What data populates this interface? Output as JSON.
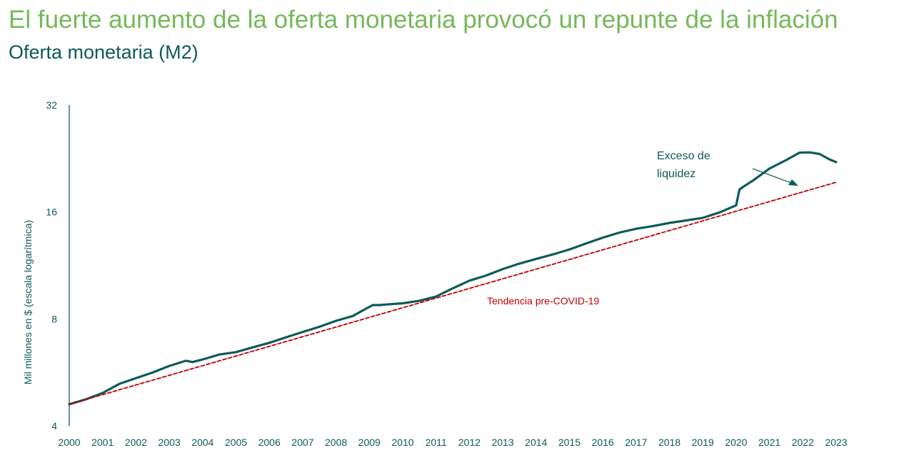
{
  "header": {
    "title": "El fuerte aumento de la oferta monetaria provocó un repunte de la inflación",
    "subtitle": "Oferta monetaria (M2)"
  },
  "colors": {
    "title": "#76b85a",
    "text": "#0e5a5a",
    "m2_line": "#0e5a5a",
    "trend_line": "#c00000"
  },
  "chart_data": {
    "type": "line",
    "title": "Oferta monetaria (M2)",
    "ylabel": "Mil millones en $ (escala logarítmica)",
    "xlabel": "",
    "yscale": "log2",
    "ylim": [
      4,
      32
    ],
    "yticks": [
      4,
      8,
      16,
      32
    ],
    "xlim": [
      2000,
      2023
    ],
    "xticks": [
      "2000",
      "2001",
      "2002",
      "2003",
      "2004",
      "2005",
      "2006",
      "2007",
      "2008",
      "2009",
      "2010",
      "2011",
      "2012",
      "2013",
      "2014",
      "2015",
      "2016",
      "2017",
      "2018",
      "2019",
      "2020",
      "2021",
      "2022",
      "2023"
    ],
    "grid": false,
    "series": [
      {
        "name": "M2",
        "style": "solid",
        "x": [
          2000.0,
          2000.5,
          2001.0,
          2001.5,
          2002.0,
          2002.5,
          2003.0,
          2003.5,
          2003.7,
          2004.0,
          2004.5,
          2005.0,
          2005.5,
          2006.0,
          2006.5,
          2007.0,
          2007.5,
          2008.0,
          2008.5,
          2008.9,
          2009.1,
          2009.3,
          2009.6,
          2010.0,
          2010.5,
          2011.0,
          2011.4,
          2011.6,
          2012.0,
          2012.5,
          2013.0,
          2013.5,
          2014.0,
          2014.5,
          2015.0,
          2015.5,
          2016.0,
          2016.5,
          2017.0,
          2017.5,
          2018.0,
          2018.5,
          2019.0,
          2019.5,
          2020.0,
          2020.1,
          2020.2,
          2020.5,
          2021.0,
          2021.5,
          2021.9,
          2022.2,
          2022.5,
          2022.8,
          2023.0
        ],
        "values": [
          4.6,
          4.75,
          4.95,
          5.25,
          5.45,
          5.65,
          5.9,
          6.1,
          6.05,
          6.15,
          6.35,
          6.45,
          6.65,
          6.85,
          7.1,
          7.35,
          7.6,
          7.9,
          8.15,
          8.55,
          8.75,
          8.75,
          8.8,
          8.85,
          9.0,
          9.25,
          9.65,
          9.85,
          10.25,
          10.6,
          11.05,
          11.45,
          11.8,
          12.15,
          12.55,
          13.05,
          13.55,
          14.0,
          14.35,
          14.6,
          14.9,
          15.15,
          15.4,
          15.95,
          16.7,
          18.5,
          18.8,
          19.6,
          21.2,
          22.4,
          23.5,
          23.55,
          23.3,
          22.5,
          22.1
        ]
      },
      {
        "name": "Tendencia pre-COVID-19",
        "style": "dashed",
        "x": [
          2000.0,
          2023.0
        ],
        "values": [
          4.6,
          19.4
        ]
      }
    ],
    "annotations": {
      "trend_label": "Tendencia pre-COVID-19",
      "excess_line1": "Exceso de",
      "excess_line2": "liquidez"
    }
  }
}
